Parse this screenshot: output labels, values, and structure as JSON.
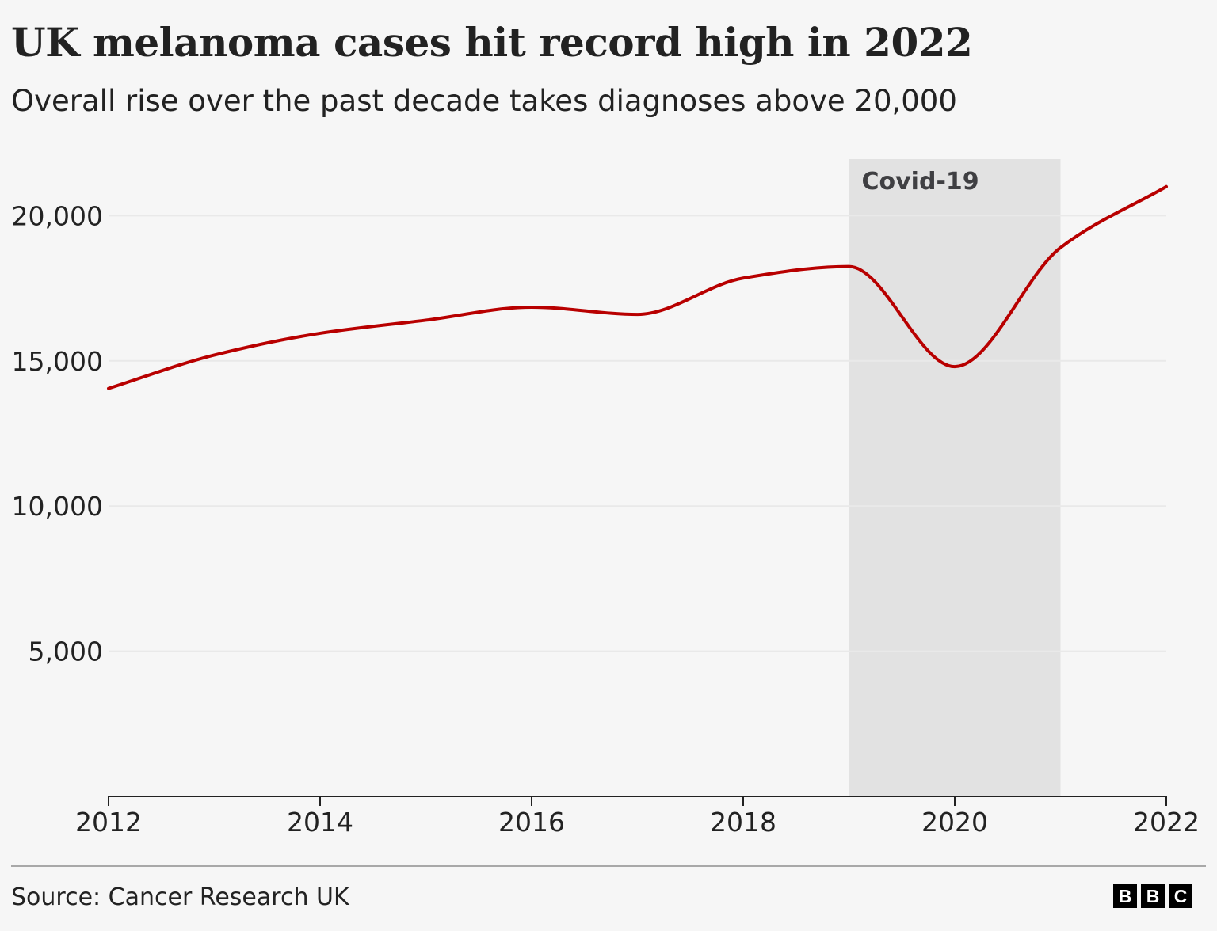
{
  "header": {
    "title": "UK melanoma cases hit record high in 2022",
    "subtitle": "Overall rise over the past decade takes diagnoses above 20,000"
  },
  "footer": {
    "source": "Source: Cancer Research UK",
    "logo_letters": [
      "B",
      "B",
      "C"
    ]
  },
  "colors": {
    "line": "#b80000",
    "annotation_band": "#e2e2e2",
    "gridline": "#e9e9e9",
    "background": "#f6f6f6"
  },
  "chart_data": {
    "type": "line",
    "title": "UK melanoma cases hit record high in 2022",
    "subtitle": "Overall rise over the past decade takes diagnoses above 20,000",
    "xlabel": "",
    "ylabel": "",
    "x": [
      2012,
      2013,
      2014,
      2015,
      2016,
      2017,
      2018,
      2019,
      2020,
      2021,
      2022
    ],
    "series": [
      {
        "values": [
          14050,
          15200,
          15950,
          16400,
          16850,
          16600,
          17850,
          18250,
          14800,
          18900,
          21000
        ]
      }
    ],
    "xlim": [
      2012,
      2022
    ],
    "ylim": [
      0,
      22000
    ],
    "x_ticks": [
      2012,
      2014,
      2016,
      2018,
      2020,
      2022
    ],
    "x_tick_labels": [
      "2012",
      "2014",
      "2016",
      "2018",
      "2020",
      "2022"
    ],
    "y_ticks": [
      5000,
      10000,
      15000,
      20000
    ],
    "y_tick_labels": [
      "5,000",
      "10,000",
      "15,000",
      "20,000"
    ],
    "grid": true,
    "annotations": [
      {
        "type": "band",
        "x_start": 2019,
        "x_end": 2021,
        "label": "Covid-19"
      }
    ]
  }
}
